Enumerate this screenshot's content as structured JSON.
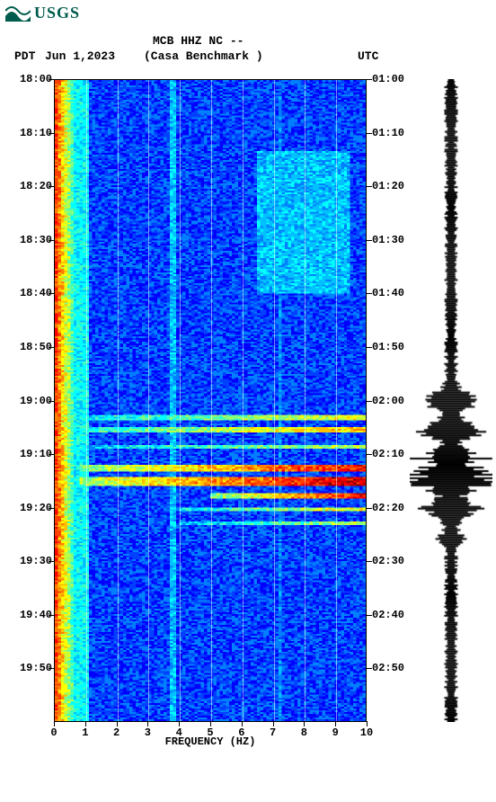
{
  "logo": {
    "text": "USGS",
    "color": "#005c4d"
  },
  "header": {
    "title1": "MCB HHZ NC --",
    "title2": "(Casa Benchmark )",
    "tz_left": "PDT",
    "date": "Jun 1,2023",
    "tz_right": "UTC"
  },
  "axes": {
    "xlabel": "FREQUENCY (HZ)",
    "xlim": [
      0,
      10
    ],
    "xticks": [
      0,
      1,
      2,
      3,
      4,
      5,
      6,
      7,
      8,
      9,
      10
    ],
    "pdt_ticks": [
      "18:00",
      "18:10",
      "18:20",
      "18:30",
      "18:40",
      "18:50",
      "19:00",
      "19:10",
      "19:20",
      "19:30",
      "19:40",
      "19:50"
    ],
    "utc_ticks": [
      "01:00",
      "01:10",
      "01:20",
      "01:30",
      "01:40",
      "01:50",
      "02:00",
      "02:10",
      "02:20",
      "02:30",
      "02:40",
      "02:50"
    ]
  },
  "spectrogram": {
    "type": "spectrogram",
    "width_cells": 100,
    "height_cells": 360,
    "cmap_name": "jet",
    "cmap": [
      "#000080",
      "#0000a0",
      "#0000c4",
      "#0000ff",
      "#0040ff",
      "#0080ff",
      "#00c0ff",
      "#00ffff",
      "#40ffc0",
      "#80ff80",
      "#c0ff40",
      "#ffff00",
      "#ffc000",
      "#ff8000",
      "#ff4000",
      "#ff0000",
      "#c00000",
      "#800000"
    ],
    "bg_level": 4,
    "lowfreq_band": {
      "fmin_cell": 0,
      "fmax_cell": 6,
      "level": 14
    },
    "lowfreq_edge_level": 7,
    "vertical_streaks": [
      {
        "cell": 37,
        "level": 6,
        "width": 2
      },
      {
        "cell": 72,
        "level": 5,
        "width": 1
      }
    ],
    "diffuse_patch": {
      "row0": 40,
      "row1": 120,
      "col0": 65,
      "col1": 95,
      "level": 6
    },
    "events": [
      {
        "row": 188,
        "thickness": 3,
        "col0": 8,
        "col1": 100,
        "level": 11
      },
      {
        "row": 195,
        "thickness": 3,
        "col0": 8,
        "col1": 100,
        "level": 12
      },
      {
        "row": 205,
        "thickness": 2,
        "col0": 8,
        "col1": 100,
        "level": 10
      },
      {
        "row": 216,
        "thickness": 4,
        "col0": 8,
        "col1": 100,
        "level": 15
      },
      {
        "row": 223,
        "thickness": 5,
        "col0": 8,
        "col1": 100,
        "level": 16
      },
      {
        "row": 232,
        "thickness": 3,
        "col0": 50,
        "col1": 100,
        "level": 15
      },
      {
        "row": 240,
        "thickness": 2,
        "col0": 40,
        "col1": 100,
        "level": 11
      },
      {
        "row": 248,
        "thickness": 2,
        "col0": 40,
        "col1": 100,
        "level": 10
      }
    ],
    "noise_speckle": 0.35
  },
  "waveform": {
    "type": "amplitude-vs-time",
    "color": "#000000",
    "samples": 360,
    "base_amplitude": 0.12,
    "events": [
      {
        "row": 180,
        "span": 14,
        "peak": 0.55
      },
      {
        "row": 196,
        "span": 10,
        "peak": 0.85
      },
      {
        "row": 212,
        "span": 10,
        "peak": 0.75
      },
      {
        "row": 223,
        "span": 14,
        "peak": 1.0
      },
      {
        "row": 240,
        "span": 12,
        "peak": 0.6
      },
      {
        "row": 256,
        "span": 8,
        "peak": 0.35
      }
    ]
  },
  "footer_mark": ""
}
